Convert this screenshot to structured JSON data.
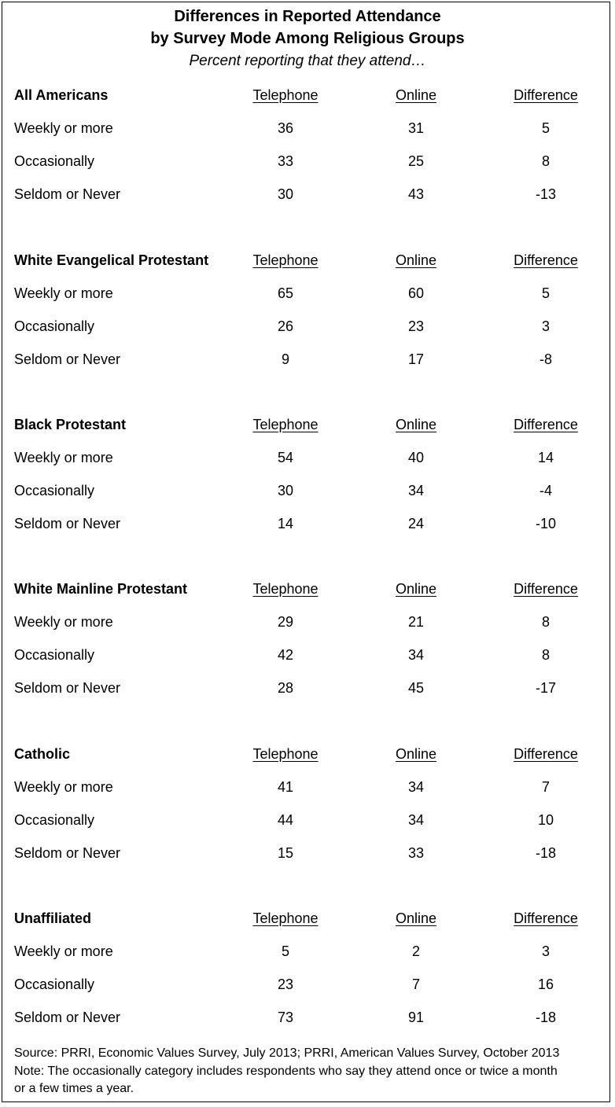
{
  "chart_data": {
    "type": "table",
    "title": "Differences in Reported Attendance",
    "title_line2": "by Survey Mode Among Religious Groups",
    "subtitle": "Percent reporting that they attend…",
    "columns": [
      "Telephone",
      "Online",
      "Difference"
    ],
    "groups": [
      {
        "name": "All Americans",
        "rows": [
          {
            "label": "Weekly or more",
            "values": [
              "36",
              "31",
              "5"
            ]
          },
          {
            "label": "Occasionally",
            "values": [
              "33",
              "25",
              "8"
            ]
          },
          {
            "label": "Seldom or Never",
            "values": [
              "30",
              "43",
              "-13"
            ]
          }
        ]
      },
      {
        "name": "White Evangelical Protestant",
        "rows": [
          {
            "label": "Weekly or more",
            "values": [
              "65",
              "60",
              "5"
            ]
          },
          {
            "label": "Occasionally",
            "values": [
              "26",
              "23",
              "3"
            ]
          },
          {
            "label": "Seldom or Never",
            "values": [
              "9",
              "17",
              "-8"
            ]
          }
        ]
      },
      {
        "name": "Black Protestant",
        "rows": [
          {
            "label": "Weekly or more",
            "values": [
              "54",
              "40",
              "14"
            ]
          },
          {
            "label": "Occasionally",
            "values": [
              "30",
              "34",
              "-4"
            ]
          },
          {
            "label": "Seldom or Never",
            "values": [
              "14",
              "24",
              "-10"
            ]
          }
        ]
      },
      {
        "name": "White Mainline Protestant",
        "rows": [
          {
            "label": "Weekly or more",
            "values": [
              "29",
              "21",
              "8"
            ]
          },
          {
            "label": "Occasionally",
            "values": [
              "42",
              "34",
              "8"
            ]
          },
          {
            "label": "Seldom or Never",
            "values": [
              "28",
              "45",
              "-17"
            ]
          }
        ]
      },
      {
        "name": "Catholic",
        "rows": [
          {
            "label": "Weekly or more",
            "values": [
              "41",
              "34",
              "7"
            ]
          },
          {
            "label": "Occasionally",
            "values": [
              "44",
              "34",
              "10"
            ]
          },
          {
            "label": "Seldom or Never",
            "values": [
              "15",
              "33",
              "-18"
            ]
          }
        ]
      },
      {
        "name": "Unaffiliated",
        "rows": [
          {
            "label": "Weekly or more",
            "values": [
              "5",
              "2",
              "3"
            ]
          },
          {
            "label": "Occasionally",
            "values": [
              "23",
              "7",
              "16"
            ]
          },
          {
            "label": "Seldom or Never",
            "values": [
              "73",
              "91",
              "-18"
            ]
          }
        ]
      }
    ],
    "source": "Source: PRRI, Economic Values Survey, July 2013; PRRI, American Values Survey, October 2013",
    "note_line1": "Note: The occasionally category includes respondents who say they attend once or twice a month",
    "note_line2": "or a few times a year."
  }
}
